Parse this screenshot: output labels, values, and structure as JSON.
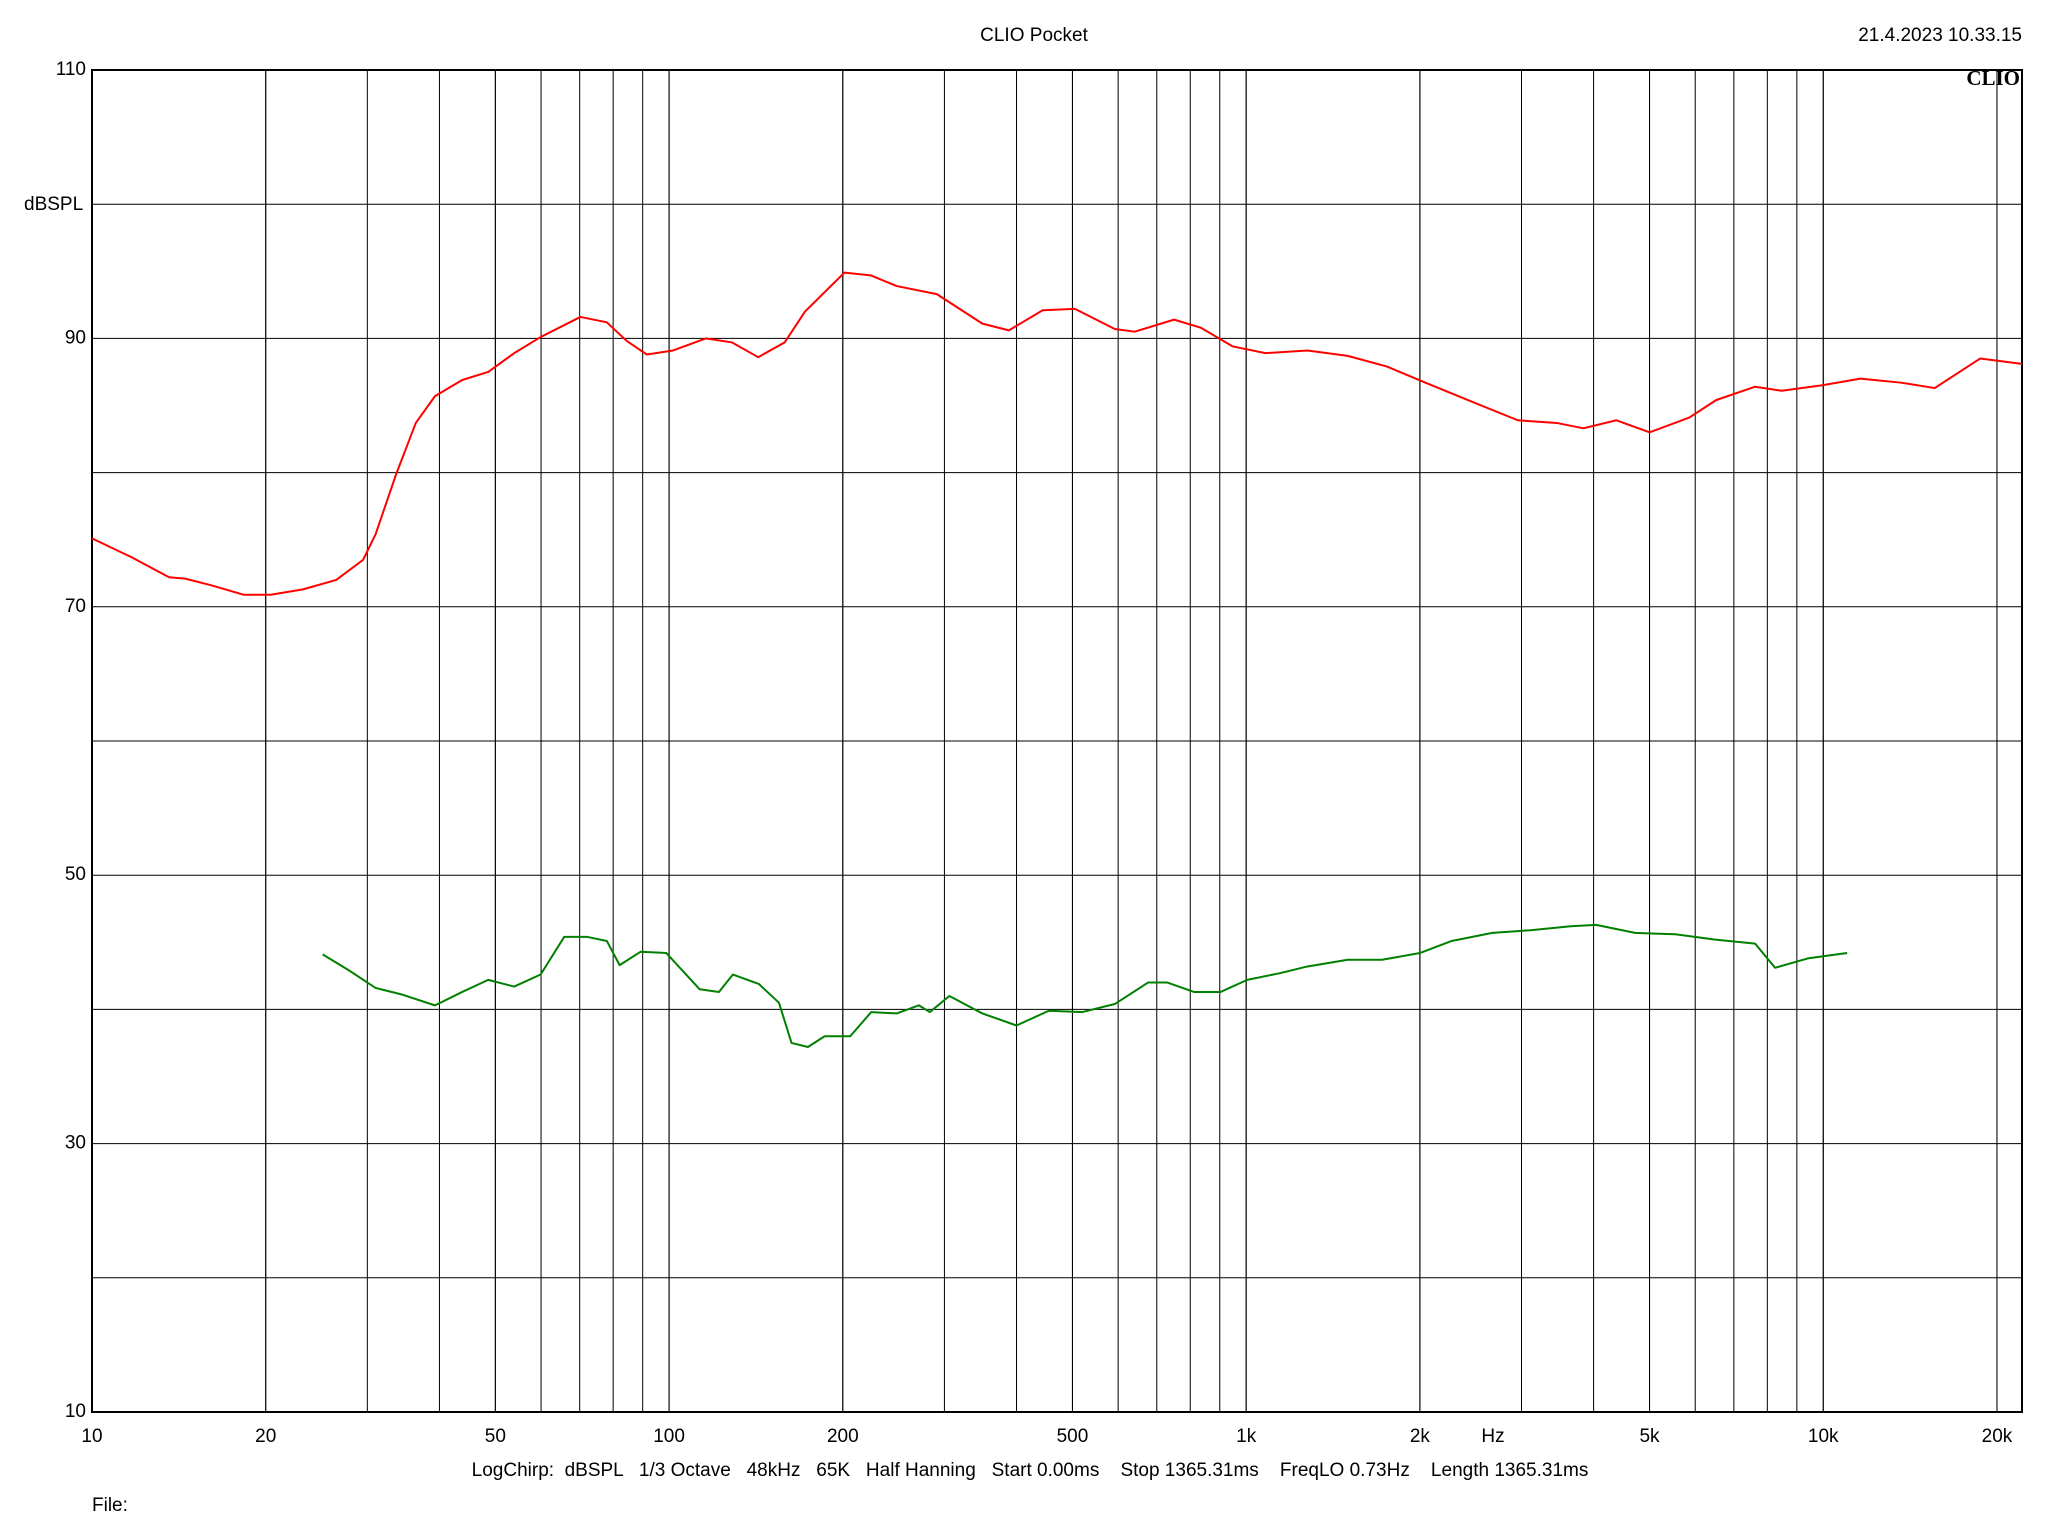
{
  "chart_data": {
    "type": "line",
    "title": "CLIO Pocket",
    "timestamp": "21.4.2023 10.33.15",
    "logo": "CLIO",
    "y_label": "dBSPL",
    "x_label": "Hz",
    "settings_line": "LogChirp:  dBSPL   1/3 Octave   48kHz   65K   Half Hanning   Start 0.00ms    Stop 1365.31ms    FreqLO 0.73Hz    Length 1365.31ms",
    "file_label": "File:",
    "log_x": true,
    "grid": true,
    "xlim": [
      10,
      22100
    ],
    "ylim": [
      10,
      110
    ],
    "xticks": [
      10,
      20,
      50,
      100,
      200,
      500,
      {
        "value": 1000,
        "label": "1k"
      },
      {
        "value": 2000,
        "label": "2k"
      },
      {
        "value": 5000,
        "label": "5k"
      },
      {
        "value": 10000,
        "label": "10k"
      },
      {
        "value": 20000,
        "label": "20k"
      }
    ],
    "yticks": [
      10,
      30,
      50,
      70,
      90,
      110
    ],
    "series": [
      {
        "color": "#ff0000",
        "x": [
          10,
          11.7,
          13.6,
          14.5,
          16.1,
          18.3,
          20.4,
          23.2,
          26.5,
          29.5,
          31,
          33.6,
          36.4,
          39.3,
          43.8,
          48.6,
          53.9,
          59.9,
          70.2,
          78,
          84.5,
          91.5,
          101.6,
          115.8,
          128.5,
          142.7,
          158.6,
          172,
          201.3,
          223.5,
          248,
          291,
          349,
          388,
          444,
          505,
          592,
          641,
          750,
          834,
          948,
          1080,
          1277,
          1500,
          1754,
          2045,
          2393,
          2955,
          3453,
          3840,
          4380,
          5000,
          5860,
          6520,
          7620,
          8470,
          9930,
          11600,
          13650,
          15600,
          18700,
          22100
        ],
        "values": [
          75.1,
          73.7,
          72.2,
          72.1,
          71.6,
          70.9,
          70.9,
          71.3,
          72.0,
          73.5,
          75.4,
          79.8,
          83.7,
          85.7,
          86.9,
          87.5,
          88.9,
          90.1,
          91.6,
          91.2,
          89.8,
          88.8,
          89.1,
          90.0,
          89.7,
          88.6,
          89.7,
          92.0,
          94.9,
          94.7,
          93.9,
          93.3,
          91.1,
          90.6,
          92.1,
          92.2,
          90.7,
          90.5,
          91.4,
          90.8,
          89.4,
          88.9,
          89.1,
          88.7,
          87.9,
          86.7,
          85.5,
          83.9,
          83.7,
          83.3,
          83.9,
          83.0,
          84.1,
          85.4,
          86.4,
          86.1,
          86.5,
          87.0,
          86.7,
          86.3,
          88.5,
          88.1
        ]
      },
      {
        "color": "#008000",
        "x": [
          25.1,
          27.9,
          31,
          34.5,
          39.3,
          43.8,
          48.6,
          53.9,
          59.9,
          65.8,
          72.2,
          78,
          82.1,
          89.3,
          98.9,
          113,
          122,
          129,
          143,
          155,
          163,
          174,
          186,
          206,
          224,
          248,
          271,
          283,
          306,
          349,
          400,
          455,
          520,
          592,
          676,
          730,
          812,
          903,
          1004,
          1144,
          1277,
          1500,
          1720,
          2000,
          2270,
          2670,
          3110,
          3650,
          4040,
          4720,
          5540,
          6500,
          7620,
          8250,
          9400,
          11000
        ],
        "values": [
          44.1,
          42.9,
          41.6,
          41.1,
          40.3,
          41.3,
          42.2,
          41.7,
          42.6,
          45.4,
          45.4,
          45.1,
          43.3,
          44.3,
          44.2,
          41.5,
          41.3,
          42.6,
          41.9,
          40.5,
          37.5,
          37.2,
          38.0,
          38.0,
          39.8,
          39.7,
          40.3,
          39.8,
          41.0,
          39.7,
          38.8,
          39.9,
          39.8,
          40.4,
          42.0,
          42.0,
          41.3,
          41.3,
          42.2,
          42.7,
          43.2,
          43.7,
          43.7,
          44.2,
          45.1,
          45.7,
          45.9,
          46.2,
          46.3,
          45.7,
          45.6,
          45.2,
          44.9,
          43.1,
          43.8,
          44.2
        ]
      }
    ]
  }
}
